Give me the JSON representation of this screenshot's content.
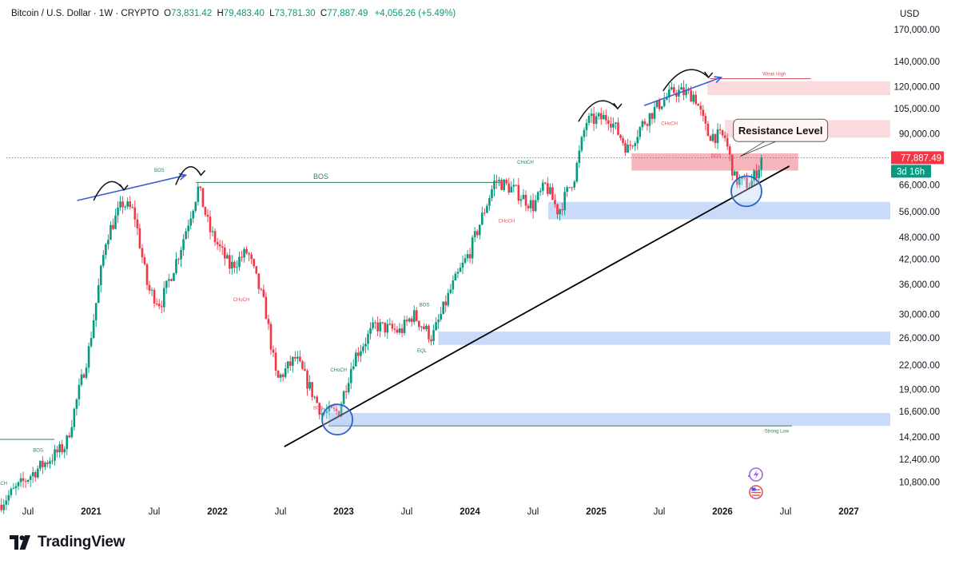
{
  "header": {
    "symbol": "Bitcoin / U.S. Dollar · 1W · CRYPTO",
    "open_label": "O",
    "open": "73,831.42",
    "high_label": "H",
    "high": "79,483.40",
    "low_label": "L",
    "low": "73,781.30",
    "close_label": "C",
    "close": "77,887.49",
    "change": "+4,056.26 (+5.49%)",
    "currency": "USD"
  },
  "brand": {
    "name": "TradingView",
    "logo_text": "TV"
  },
  "colors": {
    "up": "#089981",
    "down": "#f23645",
    "accent": "#2962ff",
    "demand_zone": "#b7cff5",
    "supply_zone": "#f7c5c9",
    "supply_zone_strong": "#f2a9b0",
    "trendline": "#000000",
    "bos_line": "#2e7d5b"
  },
  "chart_data": {
    "type": "candlestick",
    "title": "Bitcoin / U.S. Dollar · 1W · CRYPTO",
    "ylabel": "USD",
    "yscale": "log",
    "ylim": [
      9000,
      200000
    ],
    "y_ticks": [
      10800,
      12400,
      14200,
      16600,
      19000,
      22000,
      26000,
      30000,
      36000,
      42000,
      48000,
      56000,
      66000,
      77000,
      90000,
      105000,
      120000,
      140000,
      170000
    ],
    "y_tick_labels": [
      "10,800.00",
      "12,400.00",
      "14,200.00",
      "16,600.00",
      "19,000.00",
      "22,000.00",
      "26,000.00",
      "30,000.00",
      "36,000.00",
      "42,000.00",
      "48,000.00",
      "56,000.00",
      "66,000.00",
      "77,000.00",
      "90,000.00",
      "105,000.00",
      "120,000.00",
      "140,000.00",
      "170,000.00"
    ],
    "x_ticks": [
      {
        "t": 2020.5,
        "label": "Jul",
        "bold": false
      },
      {
        "t": 2021.0,
        "label": "2021",
        "bold": true
      },
      {
        "t": 2021.5,
        "label": "Jul",
        "bold": false
      },
      {
        "t": 2022.0,
        "label": "2022",
        "bold": true
      },
      {
        "t": 2022.5,
        "label": "Jul",
        "bold": false
      },
      {
        "t": 2023.0,
        "label": "2023",
        "bold": true
      },
      {
        "t": 2023.5,
        "label": "Jul",
        "bold": false
      },
      {
        "t": 2024.0,
        "label": "2024",
        "bold": true
      },
      {
        "t": 2024.5,
        "label": "Jul",
        "bold": false
      },
      {
        "t": 2025.0,
        "label": "2025",
        "bold": true
      },
      {
        "t": 2025.5,
        "label": "Jul",
        "bold": false
      },
      {
        "t": 2026.0,
        "label": "2026",
        "bold": true
      },
      {
        "t": 2026.5,
        "label": "Jul",
        "bold": false
      },
      {
        "t": 2027.0,
        "label": "2027",
        "bold": true
      }
    ],
    "price_path": [
      [
        2020.27,
        9400
      ],
      [
        2020.55,
        11500
      ],
      [
        2020.8,
        13500
      ],
      [
        2020.98,
        24000
      ],
      [
        2021.12,
        48000
      ],
      [
        2021.25,
        59000
      ],
      [
        2021.34,
        56000
      ],
      [
        2021.45,
        35000
      ],
      [
        2021.55,
        32000
      ],
      [
        2021.7,
        44000
      ],
      [
        2021.85,
        65000
      ],
      [
        2021.94,
        50000
      ],
      [
        2022.1,
        40000
      ],
      [
        2022.24,
        44000
      ],
      [
        2022.38,
        31000
      ],
      [
        2022.47,
        20000
      ],
      [
        2022.62,
        23000
      ],
      [
        2022.83,
        16400
      ],
      [
        2022.96,
        16600
      ],
      [
        2023.08,
        23000
      ],
      [
        2023.25,
        28000
      ],
      [
        2023.45,
        27000
      ],
      [
        2023.55,
        30000
      ],
      [
        2023.7,
        26000
      ],
      [
        2023.85,
        35000
      ],
      [
        2024.0,
        44000
      ],
      [
        2024.2,
        68000
      ],
      [
        2024.35,
        64000
      ],
      [
        2024.5,
        58000
      ],
      [
        2024.6,
        66000
      ],
      [
        2024.7,
        56000
      ],
      [
        2024.83,
        70000
      ],
      [
        2024.92,
        97000
      ],
      [
        2025.1,
        100000
      ],
      [
        2025.25,
        82000
      ],
      [
        2025.36,
        95000
      ],
      [
        2025.5,
        108000
      ],
      [
        2025.62,
        117000
      ],
      [
        2025.78,
        114000
      ],
      [
        2025.88,
        90000
      ],
      [
        2026.02,
        88000
      ],
      [
        2026.1,
        68000
      ],
      [
        2026.22,
        66000
      ],
      [
        2026.32,
        77887
      ]
    ],
    "last_price": 77887.49,
    "last_price_label": "77,887.49",
    "countdown_label": "3d 16h",
    "zones": [
      {
        "kind": "demand",
        "t0": 2022.88,
        "t1": 2027.35,
        "y0": 15200,
        "y1": 16450
      },
      {
        "kind": "demand",
        "t0": 2023.75,
        "t1": 2027.35,
        "y0": 24900,
        "y1": 27000
      },
      {
        "kind": "demand",
        "t0": 2024.62,
        "t1": 2027.35,
        "y0": 53500,
        "y1": 59500
      },
      {
        "kind": "supply",
        "t0": 2025.28,
        "t1": 2026.6,
        "y0": 72000,
        "y1": 80000
      },
      {
        "kind": "supply_light",
        "t0": 2026.02,
        "t1": 2027.35,
        "y0": 88000,
        "y1": 98000
      },
      {
        "kind": "supply_light",
        "t0": 2025.88,
        "t1": 2027.35,
        "y0": 114000,
        "y1": 124000
      }
    ],
    "lines": [
      {
        "name": "weak-high",
        "t0": 2025.9,
        "t1": 2026.7,
        "y": 126000,
        "color": "#d9545f"
      },
      {
        "name": "strong-low",
        "t0": 2022.88,
        "t1": 2026.55,
        "y": 15200,
        "color": "#2e7d5b"
      },
      {
        "name": "bos-2022",
        "t0": 2021.83,
        "t1": 2024.25,
        "y": 67000,
        "color": "#2e7d5b"
      },
      {
        "name": "left-level",
        "t0": 2020.2,
        "t1": 2020.71,
        "y": 14000,
        "color": "#2e7d5b"
      }
    ],
    "trendline": {
      "t0": 2022.53,
      "y0": 13400,
      "t1": 2026.53,
      "y1": 74000
    },
    "circles": [
      {
        "t": 2022.95,
        "y": 15800
      },
      {
        "t": 2026.19,
        "y": 63500
      }
    ],
    "blue_arrows": [
      {
        "t0": 2020.89,
        "y0": 60000,
        "t1": 2021.75,
        "y1": 70000
      },
      {
        "t0": 2025.38,
        "y0": 107000,
        "t1": 2025.99,
        "y1": 127000
      }
    ],
    "curved_arrows": [
      {
        "t0": 2021.02,
        "y0": 60000,
        "t1": 2021.26,
        "y1": 64000
      },
      {
        "t0": 2021.67,
        "y0": 66000,
        "t1": 2021.87,
        "y1": 70000
      },
      {
        "t0": 2024.86,
        "y0": 97000,
        "t1": 2025.17,
        "y1": 105000
      },
      {
        "t0": 2025.53,
        "y0": 117000,
        "t1": 2025.89,
        "y1": 127000
      }
    ],
    "annotations": [
      {
        "text": "BOS",
        "t": 2022.82,
        "y": 68500,
        "color": "#2e7d5b",
        "size": 9
      },
      {
        "text": "BOS",
        "t": 2021.54,
        "y": 71500,
        "color": "#2e7d5b",
        "size": 6
      },
      {
        "text": "BOS",
        "t": 2020.58,
        "y": 13000,
        "color": "#2e7d5b",
        "size": 6
      },
      {
        "text": "CHoCH",
        "t": 2020.27,
        "y": 10600,
        "color": "#2e7d5b",
        "size": 6
      },
      {
        "text": "CHoCH",
        "t": 2022.19,
        "y": 32500,
        "color": "#d9545f",
        "size": 6
      },
      {
        "text": "CHoCH",
        "t": 2022.96,
        "y": 21200,
        "color": "#2e7d5b",
        "size": 6
      },
      {
        "text": "BOS",
        "t": 2022.8,
        "y": 16800,
        "color": "#d9545f",
        "size": 6
      },
      {
        "text": "BOS",
        "t": 2023.64,
        "y": 31500,
        "color": "#2e7d5b",
        "size": 6
      },
      {
        "text": "EQL",
        "t": 2023.62,
        "y": 23800,
        "color": "#2e7d5b",
        "size": 6
      },
      {
        "text": "CHoCH",
        "t": 2024.44,
        "y": 75000,
        "color": "#2e7d5b",
        "size": 6
      },
      {
        "text": "CHoCH",
        "t": 2024.29,
        "y": 52500,
        "color": "#d9545f",
        "size": 6
      },
      {
        "text": "CHoCH",
        "t": 2025.58,
        "y": 95000,
        "color": "#d9545f",
        "size": 6
      },
      {
        "text": "BOS",
        "t": 2025.95,
        "y": 78000,
        "color": "#d9545f",
        "size": 6
      },
      {
        "text": "Weak High",
        "t": 2026.41,
        "y": 128500,
        "color": "#d9545f",
        "size": 6
      },
      {
        "text": "Strong Low",
        "t": 2026.43,
        "y": 14600,
        "color": "#2e7d5b",
        "size": 6
      }
    ],
    "callout": {
      "text": "Resistance Level",
      "t": 2026.46,
      "y": 92000,
      "pointer_t": 2026.14,
      "pointer_y": 78500
    }
  }
}
